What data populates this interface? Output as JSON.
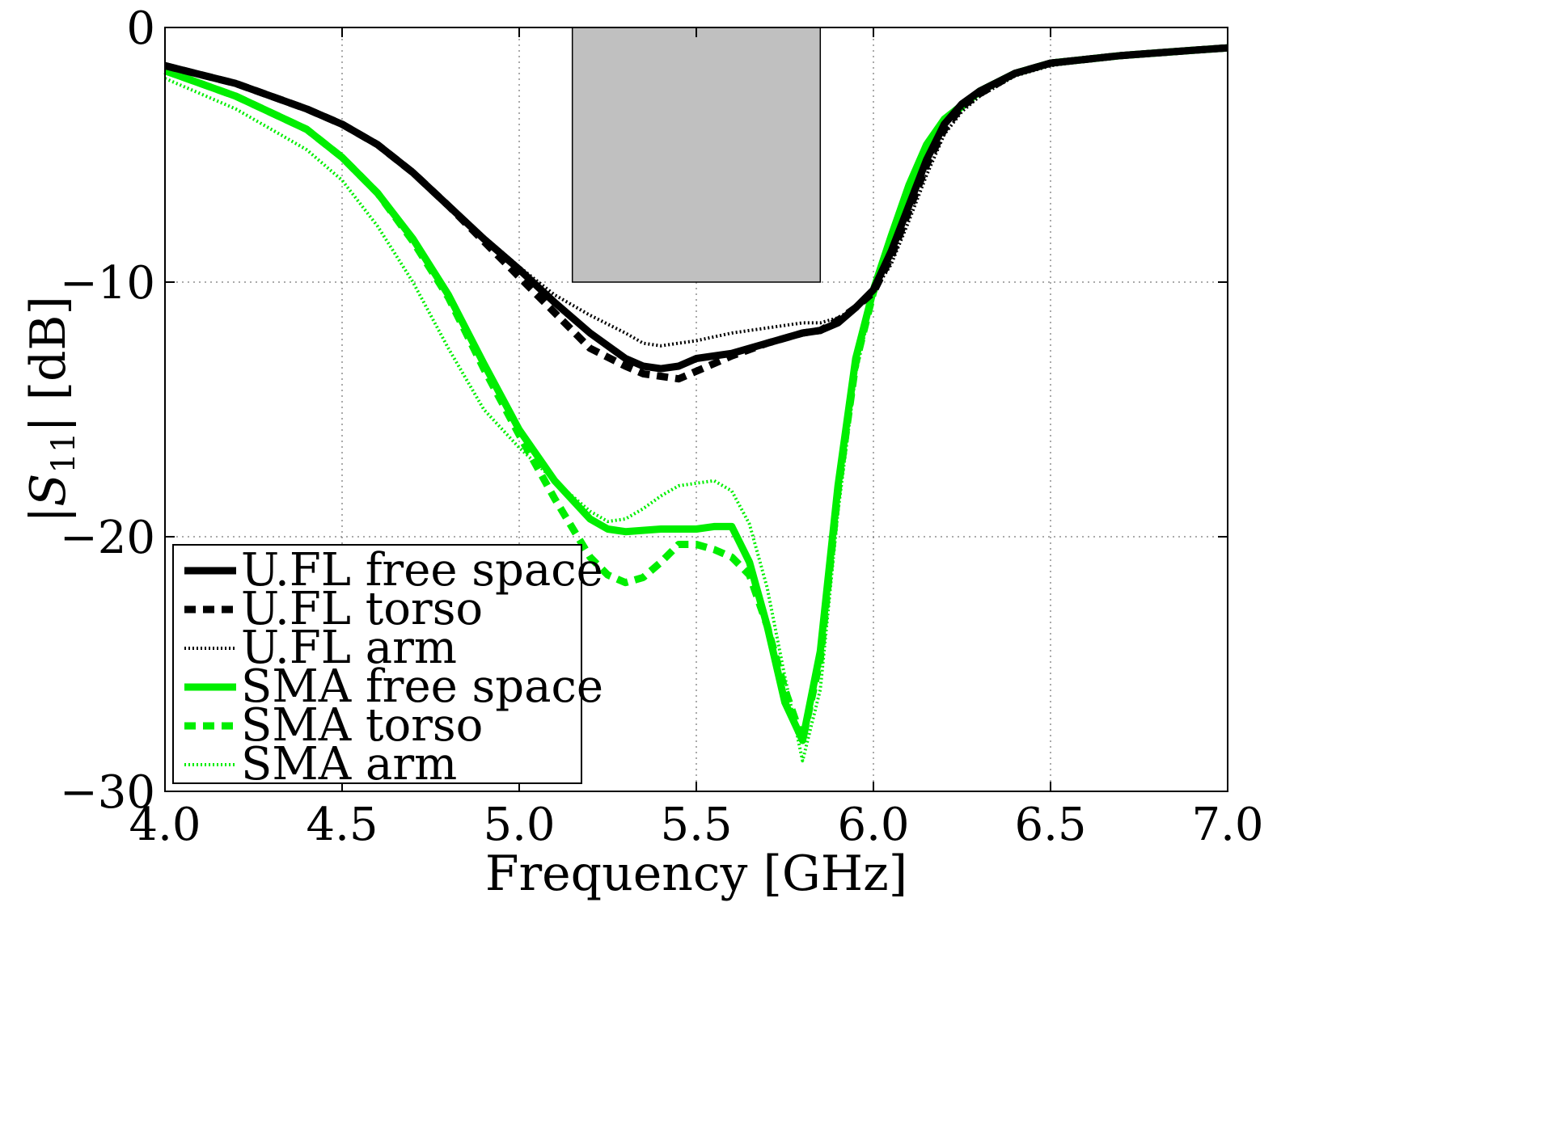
{
  "chart_data": {
    "type": "line",
    "title": "",
    "xlabel": "Frequency [GHz]",
    "ylabel": "|S11| [dB]",
    "ylabel_parts": {
      "open": "|",
      "symbol": "S",
      "subscript": "11",
      "close": "| [dB]"
    },
    "xlim": [
      4.0,
      7.0
    ],
    "ylim": [
      -30,
      0
    ],
    "xticks": [
      4.0,
      4.5,
      5.0,
      5.5,
      6.0,
      6.5,
      7.0
    ],
    "xtick_labels": [
      "4.0",
      "4.5",
      "5.0",
      "5.5",
      "6.0",
      "6.5",
      "7.0"
    ],
    "yticks": [
      0,
      -10,
      -20,
      -30
    ],
    "ytick_labels": [
      "0",
      "−10",
      "−20",
      "−30"
    ],
    "grid": true,
    "legend_position": "bottom-left",
    "shaded_region": {
      "x": [
        5.15,
        5.85
      ],
      "y": [
        -10,
        0
      ],
      "color": "#c0c0c0"
    },
    "series": [
      {
        "name": "U.FL free space",
        "color": "#000000",
        "style": "solid",
        "width": "thick",
        "x": [
          4.0,
          4.2,
          4.4,
          4.5,
          4.6,
          4.7,
          4.8,
          4.9,
          5.0,
          5.1,
          5.2,
          5.3,
          5.35,
          5.4,
          5.45,
          5.5,
          5.6,
          5.7,
          5.8,
          5.85,
          5.9,
          5.95,
          6.0,
          6.05,
          6.1,
          6.15,
          6.2,
          6.25,
          6.3,
          6.4,
          6.5,
          6.7,
          6.9,
          7.0
        ],
        "y": [
          -1.5,
          -2.2,
          -3.2,
          -3.8,
          -4.6,
          -5.7,
          -7.0,
          -8.3,
          -9.5,
          -10.8,
          -12.0,
          -13.0,
          -13.3,
          -13.4,
          -13.3,
          -13.0,
          -12.8,
          -12.4,
          -12.0,
          -11.9,
          -11.6,
          -11.0,
          -10.3,
          -8.8,
          -7.0,
          -5.2,
          -3.8,
          -3.0,
          -2.5,
          -1.8,
          -1.4,
          -1.1,
          -0.9,
          -0.8
        ]
      },
      {
        "name": "U.FL torso",
        "color": "#000000",
        "style": "dashed",
        "width": "thick",
        "x": [
          4.0,
          4.2,
          4.4,
          4.5,
          4.6,
          4.7,
          4.8,
          4.9,
          5.0,
          5.1,
          5.2,
          5.3,
          5.35,
          5.4,
          5.45,
          5.5,
          5.6,
          5.7,
          5.8,
          5.85,
          5.9,
          5.95,
          6.0,
          6.05,
          6.1,
          6.15,
          6.2,
          6.25,
          6.3,
          6.4,
          6.5,
          6.7,
          6.9,
          7.0
        ],
        "y": [
          -1.5,
          -2.2,
          -3.2,
          -3.8,
          -4.6,
          -5.7,
          -7.0,
          -8.4,
          -9.8,
          -11.2,
          -12.6,
          -13.3,
          -13.6,
          -13.7,
          -13.8,
          -13.5,
          -12.9,
          -12.4,
          -12.0,
          -11.9,
          -11.5,
          -11.0,
          -10.4,
          -9.0,
          -7.2,
          -5.4,
          -4.0,
          -3.1,
          -2.6,
          -1.8,
          -1.4,
          -1.1,
          -0.9,
          -0.8
        ]
      },
      {
        "name": "U.FL arm",
        "color": "#000000",
        "style": "dotted",
        "width": "thin",
        "x": [
          4.0,
          4.2,
          4.4,
          4.5,
          4.6,
          4.7,
          4.8,
          4.9,
          5.0,
          5.1,
          5.2,
          5.3,
          5.35,
          5.4,
          5.45,
          5.5,
          5.6,
          5.7,
          5.8,
          5.85,
          5.9,
          5.95,
          6.0,
          6.05,
          6.1,
          6.15,
          6.2,
          6.25,
          6.3,
          6.4,
          6.5,
          6.7,
          6.9,
          7.0
        ],
        "y": [
          -1.5,
          -2.2,
          -3.2,
          -3.8,
          -4.6,
          -5.7,
          -6.9,
          -8.2,
          -9.4,
          -10.5,
          -11.3,
          -12.0,
          -12.4,
          -12.5,
          -12.4,
          -12.3,
          -12.0,
          -11.8,
          -11.6,
          -11.6,
          -11.4,
          -11.0,
          -10.4,
          -9.3,
          -7.6,
          -5.8,
          -4.2,
          -3.3,
          -2.7,
          -1.9,
          -1.5,
          -1.1,
          -0.9,
          -0.8
        ]
      },
      {
        "name": "SMA free space",
        "color": "#00ee00",
        "style": "solid",
        "width": "thick",
        "x": [
          4.0,
          4.2,
          4.4,
          4.5,
          4.6,
          4.7,
          4.8,
          4.9,
          5.0,
          5.1,
          5.2,
          5.25,
          5.3,
          5.4,
          5.5,
          5.55,
          5.6,
          5.65,
          5.7,
          5.75,
          5.8,
          5.85,
          5.9,
          5.95,
          6.0,
          6.05,
          6.1,
          6.15,
          6.2,
          6.3,
          6.4,
          6.5,
          6.7,
          6.9,
          7.0
        ],
        "y": [
          -1.7,
          -2.7,
          -4.0,
          -5.1,
          -6.5,
          -8.3,
          -10.5,
          -13.2,
          -15.8,
          -17.8,
          -19.3,
          -19.7,
          -19.8,
          -19.7,
          -19.7,
          -19.6,
          -19.6,
          -21.0,
          -23.5,
          -26.5,
          -28.0,
          -24.5,
          -18.0,
          -13.0,
          -10.3,
          -8.2,
          -6.2,
          -4.6,
          -3.6,
          -2.5,
          -1.8,
          -1.4,
          -1.1,
          -0.9,
          -0.8
        ]
      },
      {
        "name": "SMA torso",
        "color": "#00ee00",
        "style": "dashed",
        "width": "thick",
        "x": [
          4.0,
          4.2,
          4.4,
          4.5,
          4.6,
          4.7,
          4.8,
          4.9,
          5.0,
          5.1,
          5.2,
          5.25,
          5.3,
          5.35,
          5.4,
          5.45,
          5.5,
          5.55,
          5.6,
          5.65,
          5.7,
          5.75,
          5.8,
          5.85,
          5.9,
          5.95,
          6.0,
          6.05,
          6.1,
          6.15,
          6.2,
          6.3,
          6.4,
          6.5,
          6.7,
          6.9,
          7.0
        ],
        "y": [
          -1.7,
          -2.7,
          -4.0,
          -5.1,
          -6.5,
          -8.4,
          -10.6,
          -13.4,
          -16.0,
          -18.5,
          -20.8,
          -21.5,
          -21.8,
          -21.6,
          -21.0,
          -20.3,
          -20.3,
          -20.5,
          -20.8,
          -21.5,
          -23.5,
          -26.0,
          -28.0,
          -24.8,
          -18.2,
          -13.2,
          -10.4,
          -8.3,
          -6.3,
          -4.7,
          -3.7,
          -2.5,
          -1.8,
          -1.4,
          -1.1,
          -0.9,
          -0.8
        ]
      },
      {
        "name": "SMA arm",
        "color": "#00ee00",
        "style": "dotted",
        "width": "thin",
        "x": [
          4.0,
          4.2,
          4.4,
          4.5,
          4.6,
          4.7,
          4.8,
          4.9,
          5.0,
          5.1,
          5.2,
          5.25,
          5.3,
          5.35,
          5.4,
          5.45,
          5.5,
          5.55,
          5.6,
          5.65,
          5.7,
          5.75,
          5.8,
          5.85,
          5.9,
          5.95,
          6.0,
          6.05,
          6.1,
          6.15,
          6.2,
          6.3,
          6.4,
          6.5,
          6.7,
          6.9,
          7.0
        ],
        "y": [
          -2.0,
          -3.2,
          -4.8,
          -6.0,
          -7.8,
          -10.0,
          -12.6,
          -15.0,
          -16.5,
          -17.8,
          -19.0,
          -19.4,
          -19.3,
          -18.9,
          -18.4,
          -18.0,
          -17.9,
          -17.8,
          -18.2,
          -19.5,
          -22.0,
          -25.5,
          -28.8,
          -26.0,
          -19.0,
          -13.6,
          -10.5,
          -8.4,
          -6.4,
          -4.8,
          -3.8,
          -2.6,
          -1.9,
          -1.4,
          -1.1,
          -0.9,
          -0.8
        ]
      }
    ]
  }
}
